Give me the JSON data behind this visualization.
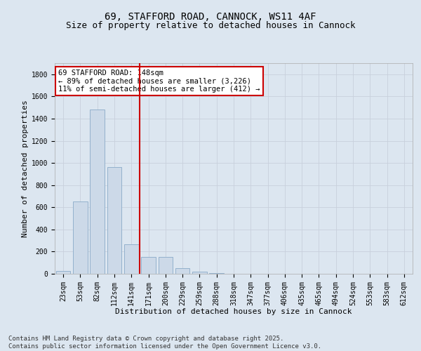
{
  "title1": "69, STAFFORD ROAD, CANNOCK, WS11 4AF",
  "title2": "Size of property relative to detached houses in Cannock",
  "xlabel": "Distribution of detached houses by size in Cannock",
  "ylabel": "Number of detached properties",
  "categories": [
    "23sqm",
    "53sqm",
    "82sqm",
    "112sqm",
    "141sqm",
    "171sqm",
    "200sqm",
    "229sqm",
    "259sqm",
    "288sqm",
    "318sqm",
    "347sqm",
    "377sqm",
    "406sqm",
    "435sqm",
    "465sqm",
    "494sqm",
    "524sqm",
    "553sqm",
    "583sqm",
    "612sqm"
  ],
  "values": [
    25,
    650,
    1480,
    960,
    265,
    155,
    155,
    50,
    20,
    5,
    2,
    1,
    0,
    0,
    0,
    0,
    0,
    0,
    0,
    0,
    0
  ],
  "bar_color": "#ccd9e8",
  "bar_edge_color": "#8aaac8",
  "vline_color": "#cc0000",
  "annotation_text": "69 STAFFORD ROAD: 148sqm\n← 89% of detached houses are smaller (3,226)\n11% of semi-detached houses are larger (412) →",
  "annotation_box_color": "#ffffff",
  "annotation_box_edge_color": "#cc0000",
  "ylim": [
    0,
    1900
  ],
  "yticks": [
    0,
    200,
    400,
    600,
    800,
    1000,
    1200,
    1400,
    1600,
    1800
  ],
  "grid_color": "#c8d0dc",
  "bg_color": "#dce6f0",
  "plot_bg_color": "#dce6f0",
  "footnote": "Contains HM Land Registry data © Crown copyright and database right 2025.\nContains public sector information licensed under the Open Government Licence v3.0.",
  "title_fontsize": 10,
  "subtitle_fontsize": 9,
  "axis_label_fontsize": 8,
  "tick_fontsize": 7,
  "annotation_fontsize": 7.5,
  "footnote_fontsize": 6.5
}
